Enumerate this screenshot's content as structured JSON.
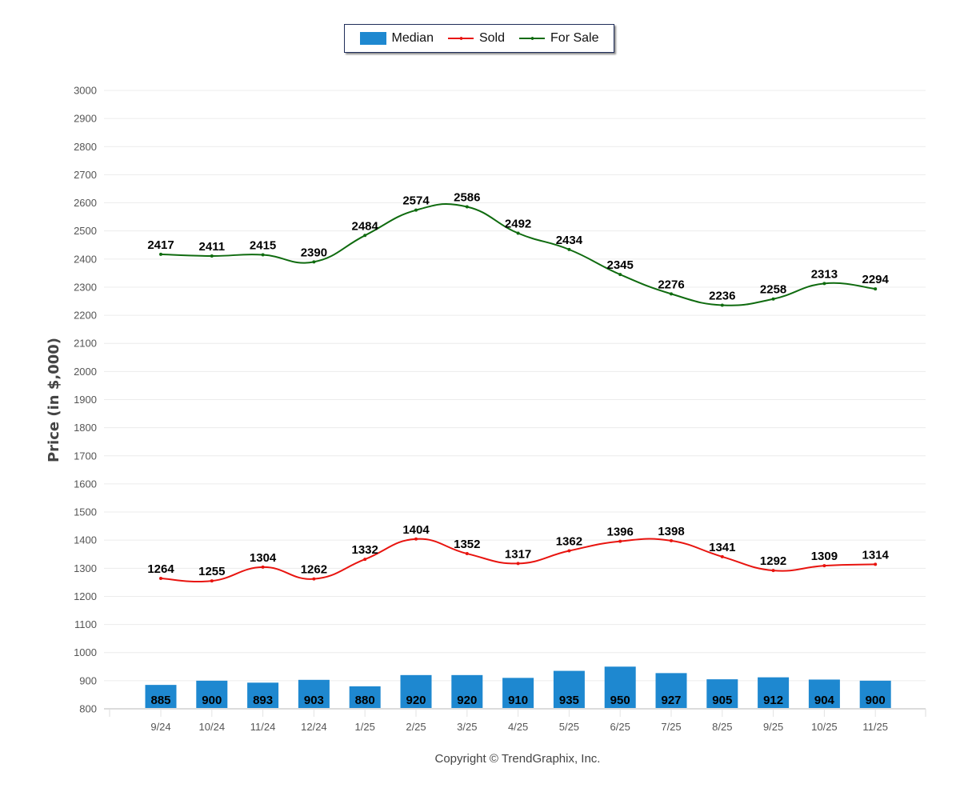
{
  "chart_data": {
    "type": "bar+line",
    "title": "",
    "xlabel": "",
    "ylabel": "Price (in $,000)",
    "ylim": [
      800,
      3000
    ],
    "yticks": [
      800,
      900,
      1000,
      1100,
      1200,
      1300,
      1400,
      1500,
      1600,
      1700,
      1800,
      1900,
      2000,
      2100,
      2200,
      2300,
      2400,
      2500,
      2600,
      2700,
      2800,
      2900,
      3000
    ],
    "grid": true,
    "legend_position": "top-center",
    "categories": [
      "9/24",
      "10/24",
      "11/24",
      "12/24",
      "1/25",
      "2/25",
      "3/25",
      "4/25",
      "5/25",
      "6/25",
      "7/25",
      "8/25",
      "9/25",
      "10/25",
      "11/25"
    ],
    "series": [
      {
        "name": "Median",
        "type": "bar",
        "color": "#1e88d0",
        "values": [
          885,
          900,
          893,
          903,
          880,
          920,
          920,
          910,
          935,
          950,
          927,
          905,
          912,
          904,
          900
        ]
      },
      {
        "name": "Sold",
        "type": "line",
        "smooth": true,
        "color": "#e8140f",
        "values": [
          1264,
          1255,
          1304,
          1262,
          1332,
          1404,
          1352,
          1317,
          1362,
          1396,
          1398,
          1341,
          1292,
          1309,
          1314
        ]
      },
      {
        "name": "For Sale",
        "type": "line",
        "smooth": true,
        "color": "#0f6b0f",
        "values": [
          2417,
          2411,
          2415,
          2390,
          2484,
          2574,
          2586,
          2492,
          2434,
          2345,
          2276,
          2236,
          2258,
          2313,
          2294
        ]
      }
    ]
  },
  "legend": {
    "items": [
      {
        "label": "Median",
        "color": "#1e88d0"
      },
      {
        "label": "Sold",
        "color": "#e8140f"
      },
      {
        "label": "For Sale",
        "color": "#0f6b0f"
      }
    ]
  },
  "footer": {
    "copyright": "Copyright © TrendGraphix, Inc."
  }
}
